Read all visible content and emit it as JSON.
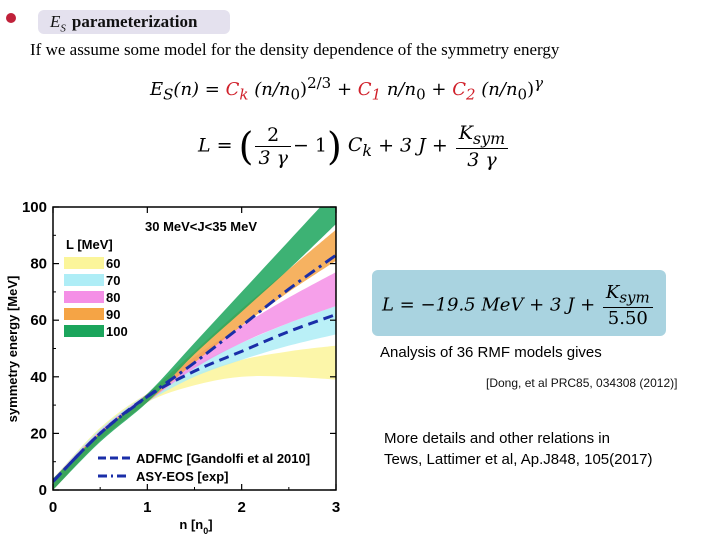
{
  "slide": {
    "title_symbol": "E",
    "title_sub": "S",
    "title_rest": "parameterization",
    "intro": "If we assume some model for the density dependence of the symmetry energy"
  },
  "equation1": {
    "lhs": "E",
    "lhs_sub": "S",
    "lhs_arg": "(n) =",
    "t1_coef": "C",
    "t1_coef_sub": "k",
    "t1_body": "(n/n",
    "t1_sub": "0",
    "t1_close": ")",
    "t1_exp": "2/3",
    "plus": "+",
    "t2_coef": "C",
    "t2_coef_sub": "1",
    "t2_body": "n/n",
    "t2_sub": "0",
    "t3_coef": "C",
    "t3_coef_sub": "2",
    "t3_body": "(n/n",
    "t3_sub": "0",
    "t3_close": ")",
    "t3_exp": "γ"
  },
  "equation2": {
    "lhs": "L =",
    "frac_num": "2",
    "frac_den": "3 γ",
    "minus_one": "− 1",
    "ck": "C",
    "ck_sub": "k",
    "plus": "+",
    "three_j": "3 J",
    "ksym_num": "K",
    "ksym_sub": "sym",
    "ksym_den": "3 γ"
  },
  "box_equation": {
    "lhs": "L = −19.5 MeV + 3 J +",
    "num": "K",
    "num_sub": "sym",
    "den": "5.50"
  },
  "analysis_text": "Analysis of 36 RMF models gives",
  "citation": "[Dong, et al PRC85, 034308 (2012)]",
  "more_details": {
    "line1": "More details and other relations in",
    "line2": "Tews, Lattimer et al, Ap.J848, 105(2017)"
  },
  "colors": {
    "bullet": "#c0213a",
    "title_pill": "#e4e1ee",
    "red_coefficients": "#d0202a",
    "box_bg": "#a9d3e0",
    "curve_line": "#1a2ea8"
  },
  "chart_data": {
    "type": "area",
    "xlabel": "n [n",
    "xlabel_sub": "0",
    "xlabel_close": "]",
    "ylabel": "symmetry energy [MeV]",
    "xlim": [
      0,
      3
    ],
    "ylim": [
      0,
      100
    ],
    "x_ticks": [
      "0",
      "1",
      "2",
      "3"
    ],
    "y_ticks": [
      "0",
      "20",
      "40",
      "60",
      "80",
      "100"
    ],
    "annotation": "30 MeV<J<35 MeV",
    "legend_title": "L [MeV]",
    "legend_position": "top-left",
    "bands": [
      {
        "name": "60",
        "color": "#fbf59a",
        "x": [
          0,
          0.5,
          1,
          1.5,
          2,
          2.5,
          3
        ],
        "lower": [
          0,
          19,
          31,
          37,
          40,
          40,
          39
        ],
        "upper": [
          4,
          22,
          34,
          41,
          46,
          49,
          51
        ]
      },
      {
        "name": "70",
        "color": "#aeedf6",
        "x": [
          0,
          0.5,
          1,
          1.5,
          2,
          2.5,
          3
        ],
        "lower": [
          0,
          18.5,
          31,
          40,
          46,
          51,
          55
        ],
        "upper": [
          4,
          21.5,
          34,
          44,
          52,
          59,
          65
        ]
      },
      {
        "name": "80",
        "color": "#f48fe6",
        "x": [
          0,
          0.5,
          1,
          1.5,
          2,
          2.5,
          3
        ],
        "lower": [
          0,
          18,
          31,
          43,
          52,
          59,
          65
        ],
        "upper": [
          4,
          21,
          34,
          47,
          58,
          68,
          77
        ]
      },
      {
        "name": "90",
        "color": "#f5a445",
        "x": [
          0,
          0.5,
          1,
          1.5,
          2,
          2.5,
          3
        ],
        "lower": [
          0,
          17.5,
          31,
          45,
          58,
          70,
          81
        ],
        "upper": [
          4,
          20.5,
          34,
          49,
          64,
          78,
          92
        ]
      },
      {
        "name": "100",
        "color": "#1ba55c",
        "x": [
          0,
          0.5,
          1,
          1.5,
          2,
          2.5,
          3
        ],
        "lower": [
          0,
          17,
          31,
          48,
          63,
          78,
          94
        ],
        "upper": [
          4,
          20,
          34,
          52,
          70,
          88,
          106
        ]
      }
    ],
    "lines": [
      {
        "name": "ADFMC [Gandolfi et al 2010]",
        "style": "dashed",
        "x": [
          0,
          0.5,
          1,
          1.5,
          2,
          2.5,
          3
        ],
        "y": [
          3,
          20,
          33,
          42,
          49,
          56,
          62
        ]
      },
      {
        "name": "ASY-EOS [exp]",
        "style": "dash-dot",
        "x": [
          0,
          0.5,
          1,
          1.5,
          2,
          2.5,
          3
        ],
        "y": [
          3,
          20,
          33,
          45,
          58,
          71,
          83
        ]
      }
    ]
  }
}
